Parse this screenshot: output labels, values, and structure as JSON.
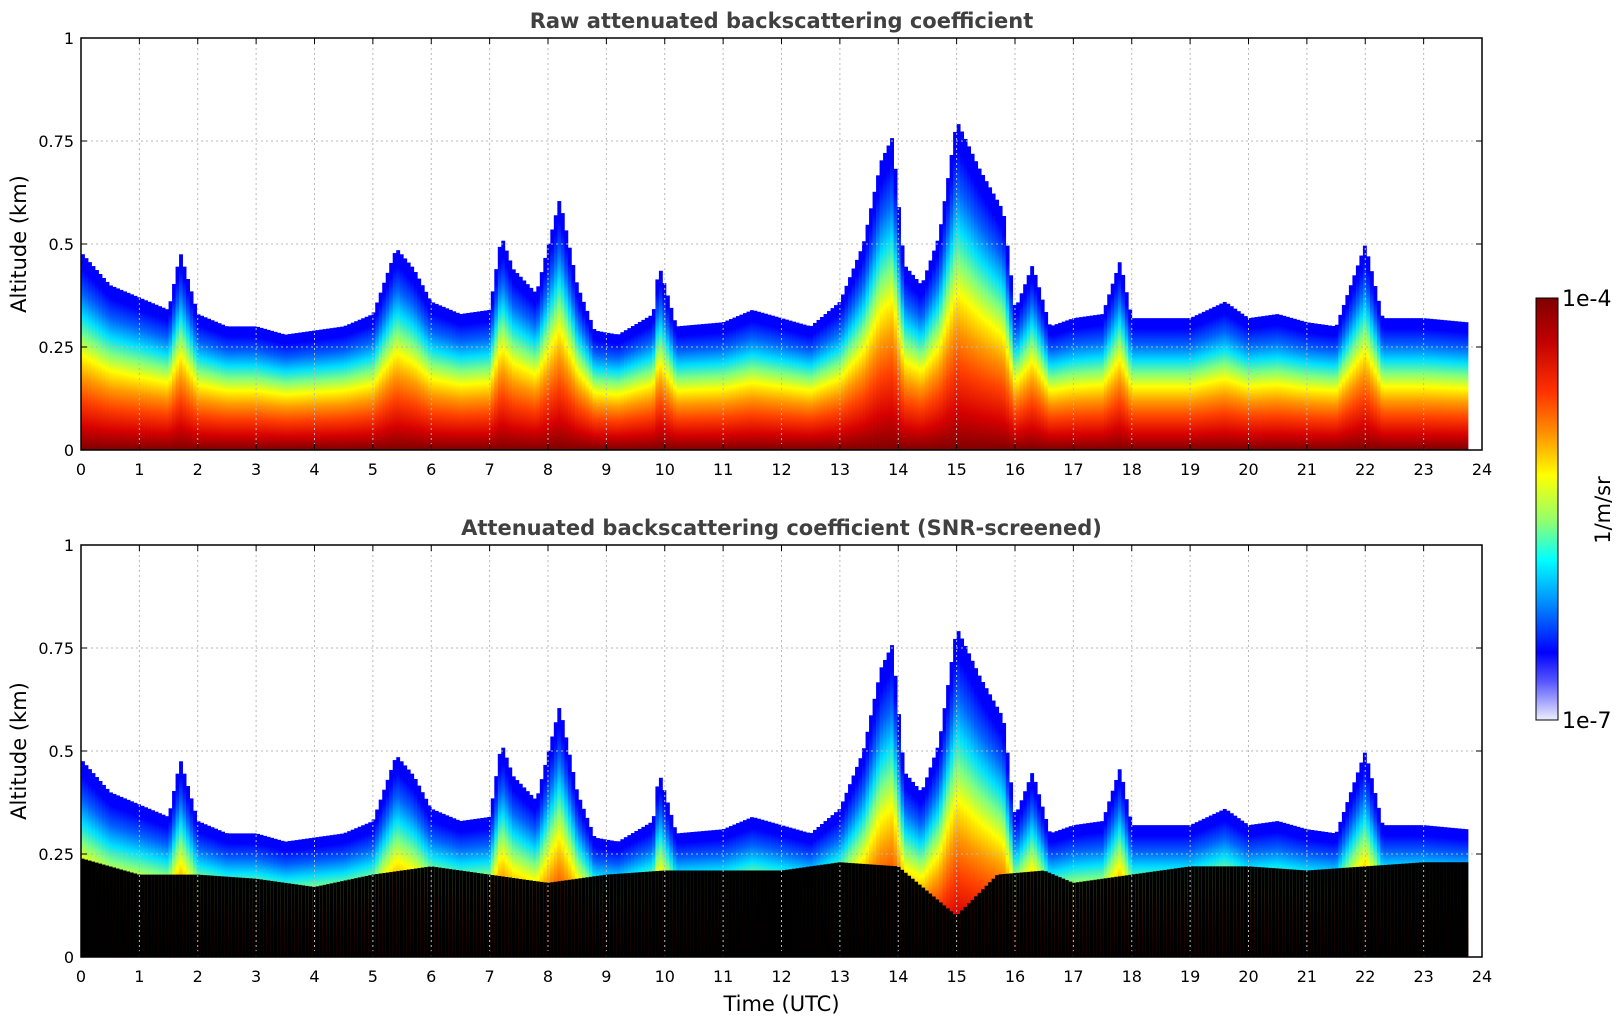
{
  "chart_data": [
    {
      "type": "heatmap",
      "title": "Raw attenuated backscattering coefficient",
      "xlabel": "",
      "ylabel": "Altitude (km)",
      "xlim": [
        0,
        24
      ],
      "ylim": [
        0,
        1
      ],
      "xticks": [
        "0",
        "1",
        "2",
        "3",
        "4",
        "5",
        "6",
        "7",
        "8",
        "9",
        "10",
        "11",
        "12",
        "13",
        "14",
        "15",
        "16",
        "17",
        "18",
        "19",
        "20",
        "21",
        "22",
        "23",
        "24"
      ],
      "yticks": [
        "0",
        "0.25",
        "0.5",
        "0.75",
        "1"
      ],
      "grid": true,
      "data_end_time": 23.75,
      "cloud_top_km": [
        [
          0.0,
          0.48
        ],
        [
          0.5,
          0.4
        ],
        [
          1.0,
          0.37
        ],
        [
          1.5,
          0.34
        ],
        [
          1.7,
          0.48
        ],
        [
          2.0,
          0.33
        ],
        [
          2.5,
          0.3
        ],
        [
          3.0,
          0.3
        ],
        [
          3.5,
          0.28
        ],
        [
          4.0,
          0.29
        ],
        [
          4.5,
          0.3
        ],
        [
          5.0,
          0.33
        ],
        [
          5.4,
          0.49
        ],
        [
          5.7,
          0.44
        ],
        [
          6.0,
          0.36
        ],
        [
          6.5,
          0.33
        ],
        [
          7.0,
          0.34
        ],
        [
          7.2,
          0.52
        ],
        [
          7.4,
          0.44
        ],
        [
          7.8,
          0.38
        ],
        [
          8.2,
          0.61
        ],
        [
          8.5,
          0.4
        ],
        [
          8.8,
          0.29
        ],
        [
          9.2,
          0.28
        ],
        [
          9.8,
          0.33
        ],
        [
          9.9,
          0.45
        ],
        [
          10.2,
          0.3
        ],
        [
          11.0,
          0.31
        ],
        [
          11.5,
          0.34
        ],
        [
          12.0,
          0.32
        ],
        [
          12.5,
          0.3
        ],
        [
          13.0,
          0.36
        ],
        [
          13.4,
          0.5
        ],
        [
          13.7,
          0.7
        ],
        [
          13.9,
          0.76
        ],
        [
          14.1,
          0.45
        ],
        [
          14.4,
          0.4
        ],
        [
          14.7,
          0.52
        ],
        [
          15.0,
          0.8
        ],
        [
          15.4,
          0.68
        ],
        [
          15.8,
          0.58
        ],
        [
          16.0,
          0.34
        ],
        [
          16.3,
          0.45
        ],
        [
          16.6,
          0.3
        ],
        [
          17.0,
          0.32
        ],
        [
          17.5,
          0.33
        ],
        [
          17.8,
          0.46
        ],
        [
          18.0,
          0.32
        ],
        [
          19.0,
          0.32
        ],
        [
          19.6,
          0.36
        ],
        [
          20.0,
          0.32
        ],
        [
          20.5,
          0.33
        ],
        [
          21.0,
          0.31
        ],
        [
          21.5,
          0.3
        ],
        [
          22.0,
          0.5
        ],
        [
          22.3,
          0.32
        ],
        [
          23.0,
          0.32
        ],
        [
          23.75,
          0.31
        ]
      ],
      "colorbar": {
        "label": "1/m/sr",
        "min_label": "1e-7",
        "max_label": "1e-4",
        "scale": "log"
      }
    },
    {
      "type": "heatmap",
      "title": "Attenuated backscattering coefficient (SNR-screened)",
      "xlabel": "Time (UTC)",
      "ylabel": "Altitude (km)",
      "xlim": [
        0,
        24
      ],
      "ylim": [
        0,
        1
      ],
      "xticks": [
        "0",
        "1",
        "2",
        "3",
        "4",
        "5",
        "6",
        "7",
        "8",
        "9",
        "10",
        "11",
        "12",
        "13",
        "14",
        "15",
        "16",
        "17",
        "18",
        "19",
        "20",
        "21",
        "22",
        "23",
        "24"
      ],
      "yticks": [
        "0",
        "0.25",
        "0.5",
        "0.75",
        "1"
      ],
      "grid": true,
      "screened_color": "#000000",
      "screened_top_km": [
        [
          0.0,
          0.24
        ],
        [
          0.5,
          0.22
        ],
        [
          1.0,
          0.2
        ],
        [
          2.0,
          0.2
        ],
        [
          3.0,
          0.19
        ],
        [
          4.0,
          0.17
        ],
        [
          5.0,
          0.2
        ],
        [
          6.0,
          0.22
        ],
        [
          7.0,
          0.2
        ],
        [
          8.0,
          0.18
        ],
        [
          9.0,
          0.2
        ],
        [
          10.0,
          0.21
        ],
        [
          11.0,
          0.21
        ],
        [
          12.0,
          0.21
        ],
        [
          13.0,
          0.23
        ],
        [
          14.0,
          0.22
        ],
        [
          15.0,
          0.1
        ],
        [
          15.7,
          0.2
        ],
        [
          16.5,
          0.21
        ],
        [
          17.0,
          0.18
        ],
        [
          18.0,
          0.2
        ],
        [
          19.0,
          0.22
        ],
        [
          20.0,
          0.22
        ],
        [
          21.0,
          0.21
        ],
        [
          22.0,
          0.22
        ],
        [
          23.0,
          0.23
        ],
        [
          23.75,
          0.23
        ]
      ]
    }
  ],
  "colorbar": {
    "label": "1/m/sr",
    "min_label": "1e-7",
    "max_label": "1e-4"
  }
}
